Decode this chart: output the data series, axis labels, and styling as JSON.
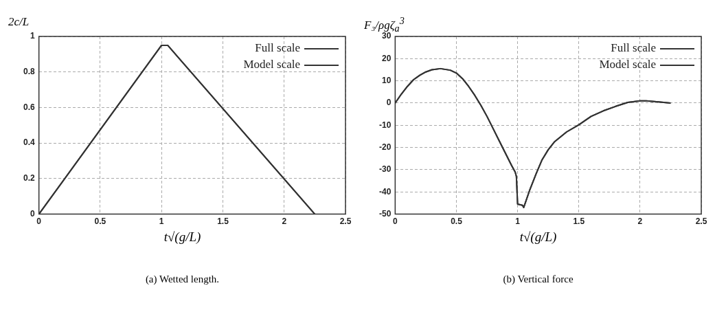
{
  "chart_data": [
    {
      "type": "line",
      "ylabel": "2c/L",
      "xlabel": "t√(g/L)",
      "annotations": [
        "(a) Wetted length."
      ],
      "xlim": [
        0,
        2.5
      ],
      "xticks": [
        0,
        0.5,
        1,
        1.5,
        2,
        2.5
      ],
      "ylim": [
        0,
        1
      ],
      "yticks": [
        0,
        0.2,
        0.4,
        0.6,
        0.8,
        1
      ],
      "grid": true,
      "legend": "top right",
      "marker": "none",
      "series": [
        {
          "name": "Full scale",
          "color": "#333333",
          "x": [
            0,
            1,
            1.05,
            2.25
          ],
          "values": [
            0,
            0.95,
            0.95,
            0
          ]
        },
        {
          "name": "Model scale",
          "color": "#333333",
          "x": [
            0,
            1,
            1.05,
            2.25
          ],
          "values": [
            0,
            0.95,
            0.95,
            0
          ]
        }
      ]
    },
    {
      "type": "line",
      "ylabel": "F₃/ρgζ$_{a}$$^{3}$",
      "xlabel": "t√(g/L)",
      "annotations": [
        "(b) Vertical force"
      ],
      "xlim": [
        0,
        2.5
      ],
      "xticks": [
        0,
        0.5,
        1,
        1.5,
        2,
        2.5
      ],
      "ylim": [
        -50,
        30
      ],
      "yticks": [
        -50,
        -40,
        -30,
        -20,
        -10,
        0,
        10,
        20,
        30
      ],
      "grid": true,
      "legend": "top right",
      "marker": "none",
      "series": [
        {
          "name": "Full scale",
          "color": "#333333",
          "x": [
            0,
            0.05,
            0.1,
            0.15,
            0.2,
            0.25,
            0.3,
            0.37,
            0.45,
            0.5,
            0.55,
            0.6,
            0.65,
            0.7,
            0.75,
            0.8,
            0.85,
            0.9,
            0.95,
            0.98,
            0.99,
            1.0,
            1.04,
            1.05,
            1.1,
            1.15,
            1.2,
            1.25,
            1.3,
            1.4,
            1.5,
            1.6,
            1.7,
            1.8,
            1.9,
            2.0,
            2.05,
            2.15,
            2.25
          ],
          "values": [
            0,
            4,
            7.5,
            10.5,
            12.5,
            14,
            15,
            15.5,
            14.8,
            13.5,
            11,
            7.5,
            3.5,
            -1,
            -6,
            -11.5,
            -17,
            -22.5,
            -28,
            -31,
            -33,
            -45.5,
            -46,
            -47,
            -39,
            -32,
            -25.5,
            -21,
            -17.5,
            -13,
            -9.8,
            -6,
            -3.5,
            -1.5,
            0.3,
            1,
            1,
            0.5,
            0
          ]
        },
        {
          "name": "Model scale",
          "color": "#333333",
          "x": [
            0,
            0.05,
            0.1,
            0.15,
            0.2,
            0.25,
            0.3,
            0.37,
            0.45,
            0.5,
            0.55,
            0.6,
            0.65,
            0.7,
            0.75,
            0.8,
            0.85,
            0.9,
            0.95,
            0.98,
            0.99,
            1.0,
            1.04,
            1.05,
            1.1,
            1.15,
            1.2,
            1.25,
            1.3,
            1.4,
            1.5,
            1.6,
            1.7,
            1.8,
            1.9,
            2.0,
            2.05,
            2.15,
            2.25
          ],
          "values": [
            0,
            4,
            7.5,
            10.5,
            12.5,
            14,
            15,
            15.5,
            14.8,
            13.5,
            11,
            7.5,
            3.5,
            -1,
            -6,
            -11.5,
            -17,
            -22.5,
            -28,
            -31,
            -33,
            -45.5,
            -46,
            -47,
            -39,
            -32,
            -25.5,
            -21,
            -17.5,
            -13,
            -9.8,
            -6,
            -3.5,
            -1.5,
            0.3,
            1,
            1,
            0.5,
            0
          ]
        }
      ]
    }
  ]
}
